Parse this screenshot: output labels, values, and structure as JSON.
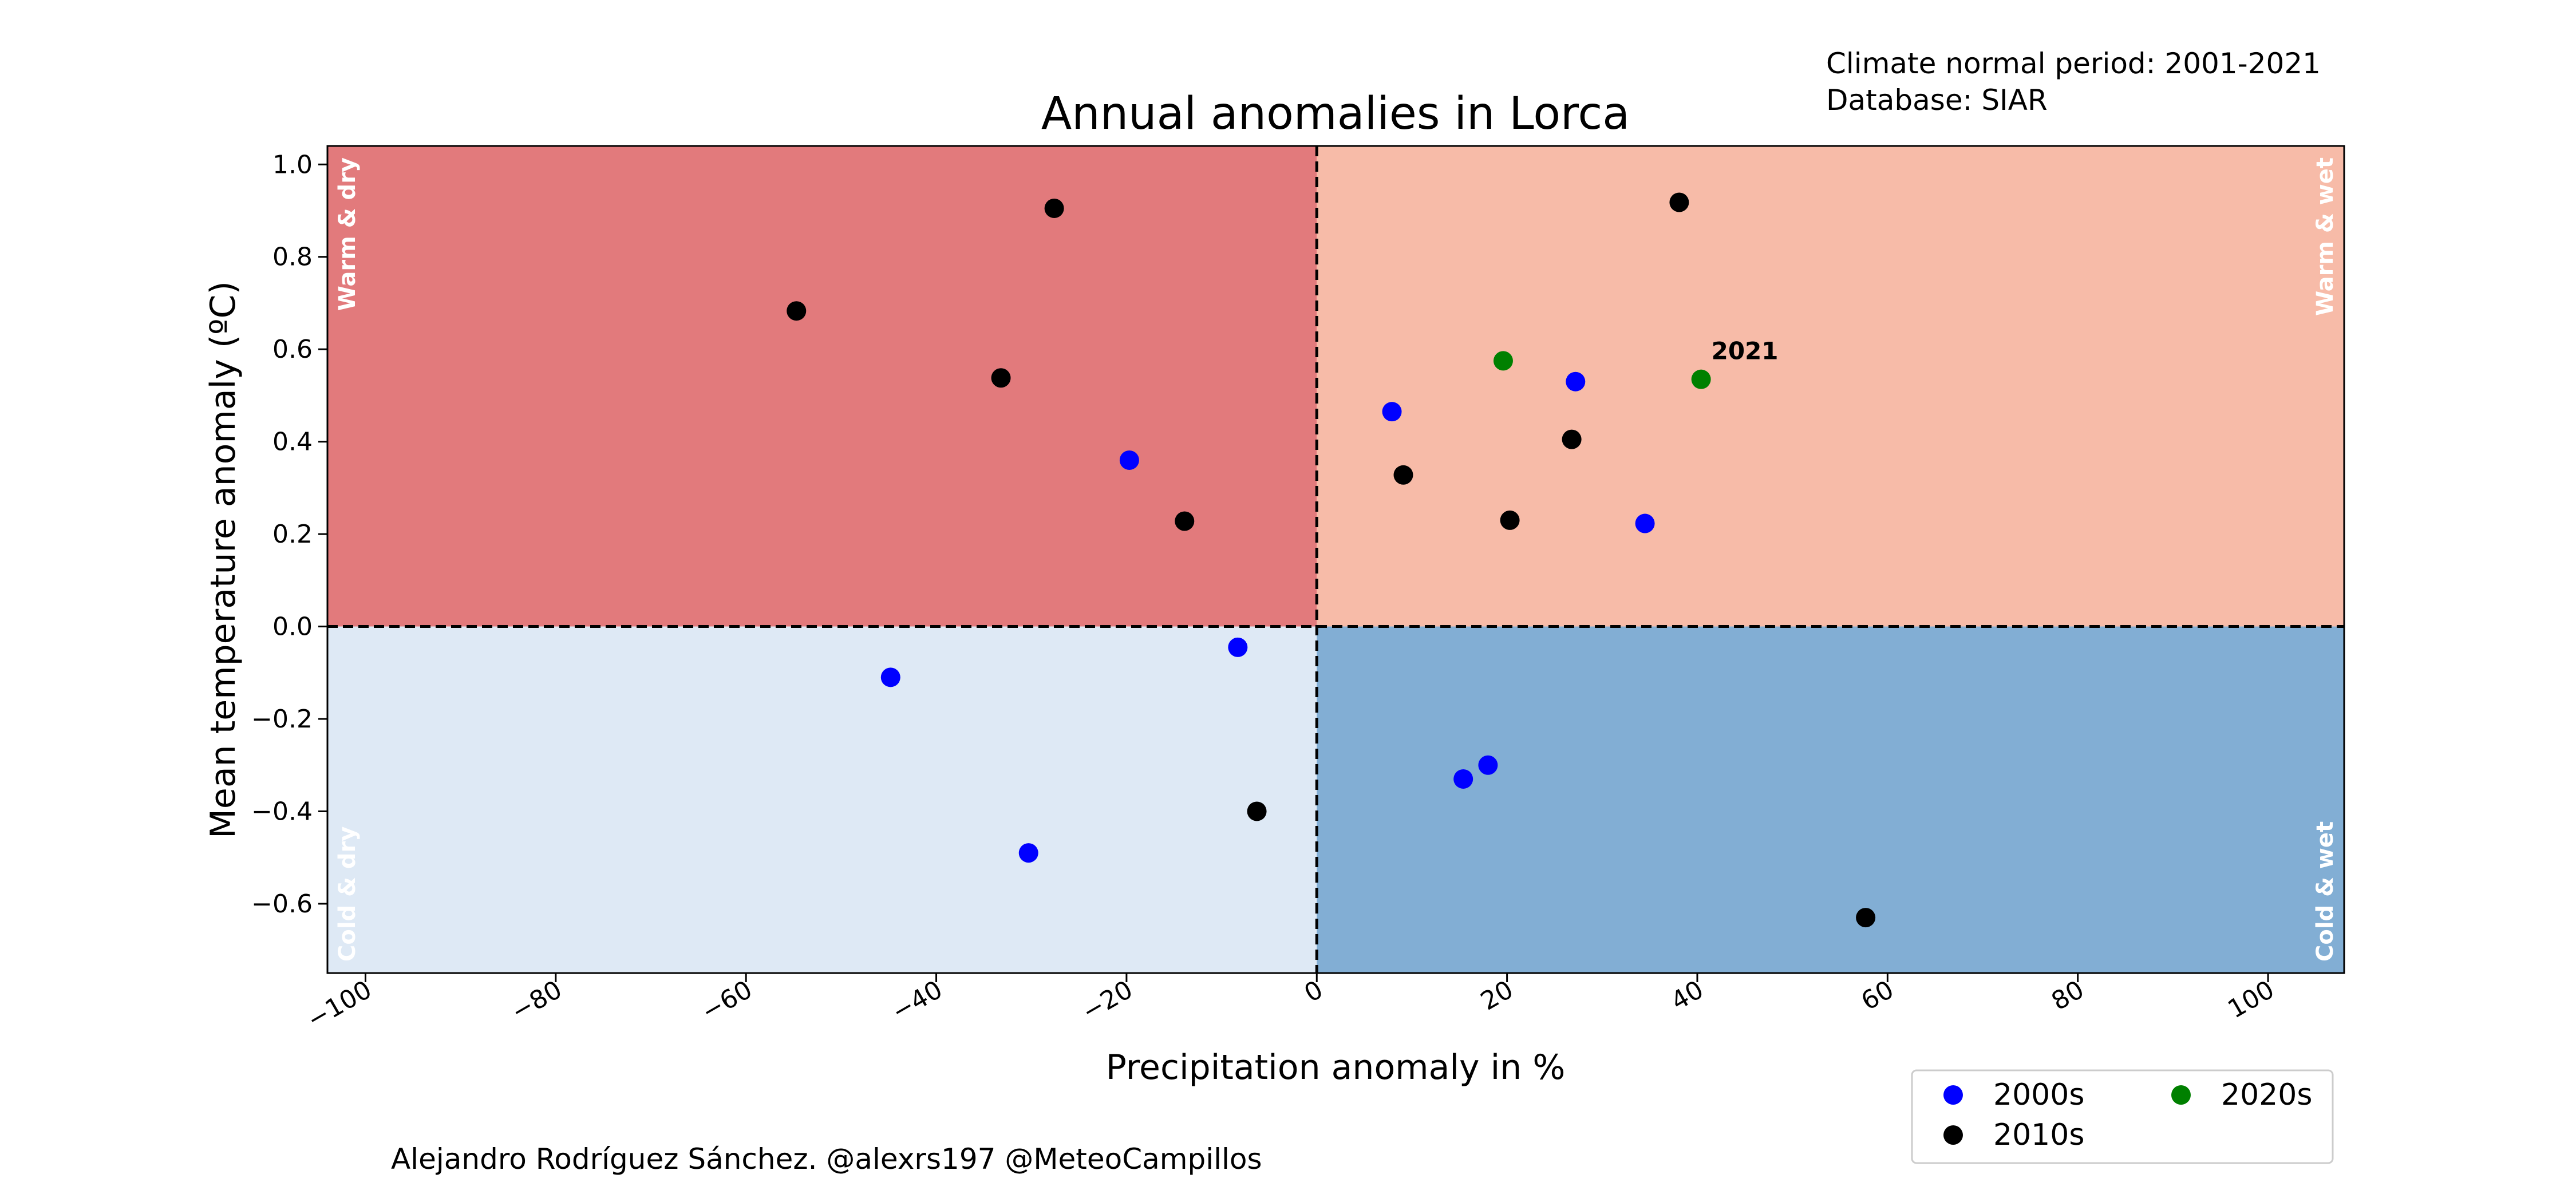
{
  "chart_data": {
    "type": "scatter",
    "title": "Annual anomalies in Lorca",
    "xlabel": "Precipitation anomaly in %",
    "ylabel": "Mean temperature anomaly (ºC)",
    "xlim": [
      -104,
      108
    ],
    "ylim": [
      -0.75,
      1.04
    ],
    "xticks": [
      -100,
      -80,
      -60,
      -40,
      -20,
      0,
      20,
      40,
      60,
      80,
      100
    ],
    "xtick_labels": [
      "−100",
      "−80",
      "−60",
      "−40",
      "−20",
      "0",
      "20",
      "40",
      "60",
      "80",
      "100"
    ],
    "yticks": [
      1.0,
      0.8,
      0.6,
      0.4,
      0.2,
      0.0,
      -0.2,
      -0.4,
      -0.6
    ],
    "ytick_labels": [
      "1.0",
      "0.8",
      "0.6",
      "0.4",
      "0.2",
      "0.0",
      "−0.2",
      "−0.4",
      "−0.6"
    ],
    "grid": false,
    "legend_position": "bottom-right",
    "quadrants": [
      {
        "label": "Warm & dry",
        "color": "#e27a7c"
      },
      {
        "label": "Warm & wet",
        "color": "#f7bba8"
      },
      {
        "label": "Cold & dry",
        "color": "#dee9f5"
      },
      {
        "label": "Cold & wet",
        "color": "#82aed4"
      }
    ],
    "series": [
      {
        "name": "2000s",
        "color": "#0000ff",
        "x": [
          -19.7,
          -44.8,
          -8.3,
          -30.3,
          7.9,
          27.2,
          34.5,
          15.4,
          18.0
        ],
        "y": [
          0.36,
          -0.11,
          -0.045,
          -0.49,
          0.465,
          0.53,
          0.223,
          -0.33,
          -0.3
        ]
      },
      {
        "name": "2010s",
        "color": "#000000",
        "x": [
          -54.7,
          -27.6,
          -33.2,
          -13.9,
          -6.3,
          38.1,
          26.8,
          9.1,
          20.3,
          57.7
        ],
        "y": [
          0.683,
          0.905,
          0.538,
          0.228,
          -0.4,
          0.918,
          0.405,
          0.328,
          0.23,
          -0.63
        ]
      },
      {
        "name": "2020s",
        "color": "#008000",
        "x": [
          19.6,
          40.4
        ],
        "y": [
          0.575,
          0.535
        ]
      }
    ],
    "annotations": [
      {
        "text": "2021",
        "x": 40.4,
        "y": 0.535
      }
    ]
  },
  "header": {
    "climate_period": "Climate normal period: 2001-2021",
    "database": "Database: SIAR"
  },
  "footer": {
    "credit": "Alejandro Rodríguez Sánchez. @alexrs197 @MeteoCampillos"
  }
}
